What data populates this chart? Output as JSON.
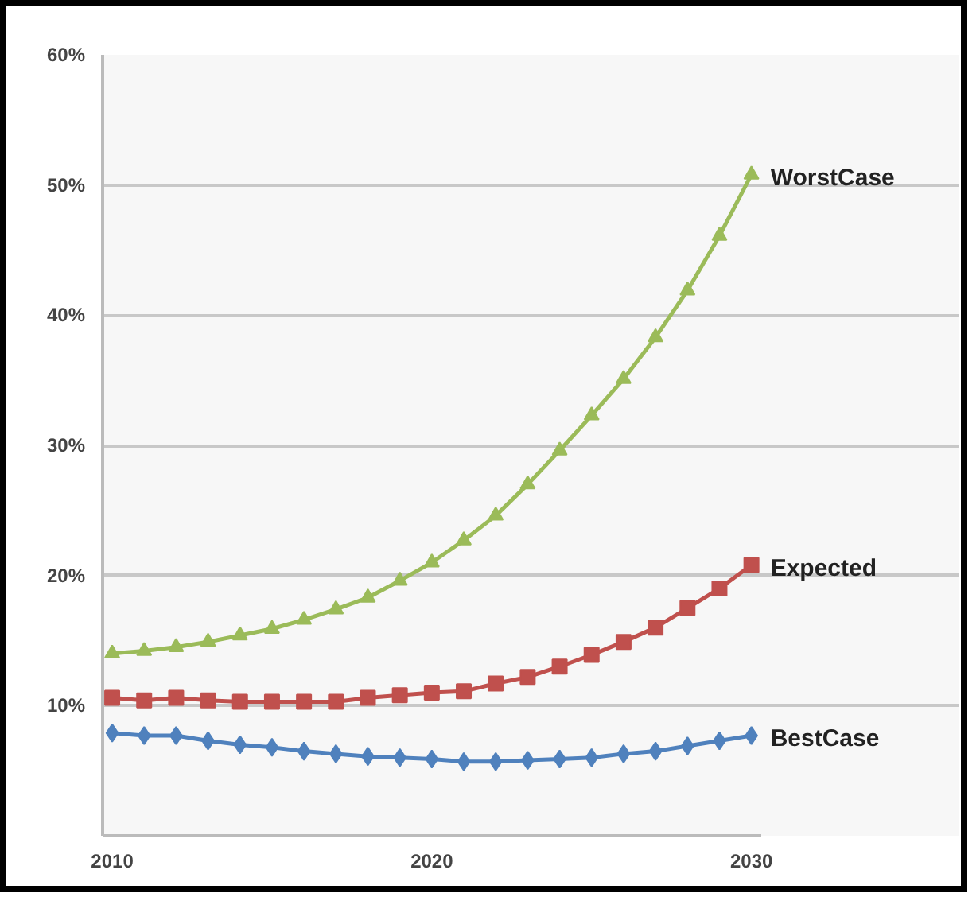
{
  "chart_data": {
    "type": "line",
    "x": [
      2010,
      2011,
      2012,
      2013,
      2014,
      2015,
      2016,
      2017,
      2018,
      2019,
      2020,
      2021,
      2022,
      2023,
      2024,
      2025,
      2026,
      2027,
      2028,
      2029,
      2030
    ],
    "series": [
      {
        "name": "WorstCase",
        "color": "#9bbb59",
        "marker": "triangle",
        "values": [
          14.0,
          14.2,
          14.5,
          14.9,
          15.4,
          15.9,
          16.6,
          17.4,
          18.3,
          19.6,
          21.0,
          22.7,
          24.6,
          27.0,
          29.6,
          32.3,
          35.1,
          38.3,
          41.9,
          46.1,
          50.8
        ]
      },
      {
        "name": "Expected",
        "color": "#c0504d",
        "marker": "square",
        "values": [
          10.6,
          10.4,
          10.6,
          10.4,
          10.3,
          10.3,
          10.3,
          10.3,
          10.6,
          10.8,
          11.0,
          11.1,
          11.7,
          12.2,
          13.0,
          13.9,
          14.9,
          16.0,
          17.5,
          19.0,
          20.8
        ]
      },
      {
        "name": "BestCase",
        "color": "#4f81bd",
        "marker": "diamond",
        "values": [
          7.9,
          7.7,
          7.7,
          7.3,
          7.0,
          6.8,
          6.5,
          6.3,
          6.1,
          6.0,
          5.9,
          5.7,
          5.7,
          5.8,
          5.9,
          6.0,
          6.3,
          6.5,
          6.9,
          7.3,
          7.7
        ]
      }
    ],
    "xlim": [
      2009.7,
      2030.3
    ],
    "xticks": [
      2010,
      2020,
      2030
    ],
    "ylim": [
      0,
      60
    ],
    "yticks": [
      {
        "value": 10,
        "label": "10%"
      },
      {
        "value": 20,
        "label": "20%"
      },
      {
        "value": 30,
        "label": "30%"
      },
      {
        "value": 40,
        "label": "40%"
      },
      {
        "value": 50,
        "label": "50%"
      },
      {
        "value": 60,
        "label": "60%"
      }
    ],
    "grid": "y",
    "line_style": "solid"
  }
}
